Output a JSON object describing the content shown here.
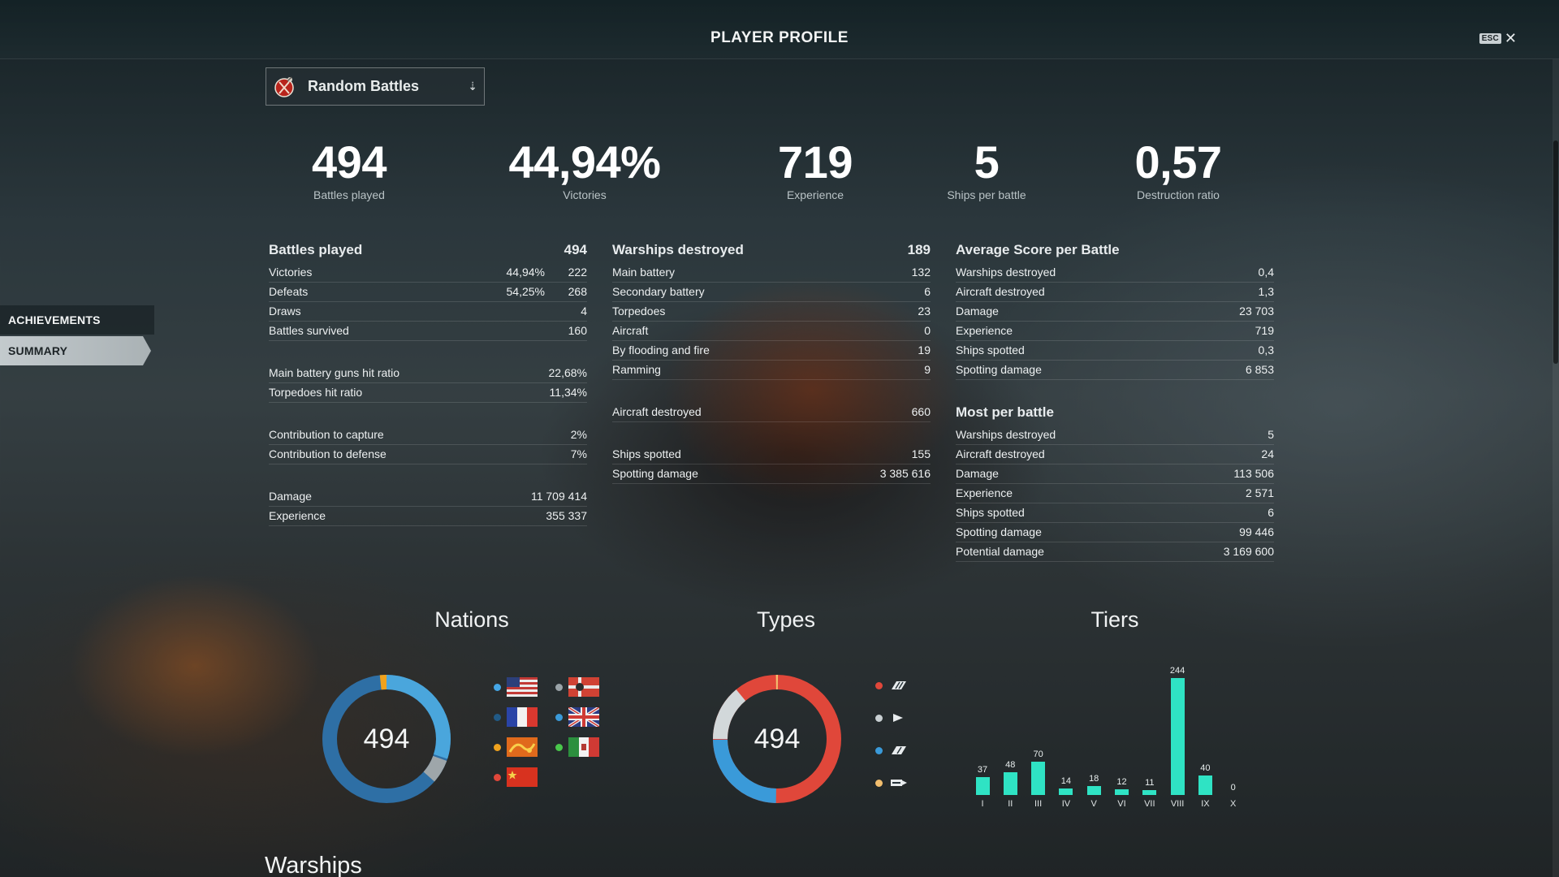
{
  "header": {
    "title": "PLAYER PROFILE",
    "esc_label": "ESC",
    "close_glyph": "✕"
  },
  "sidenav": {
    "items": [
      {
        "label": "ACHIEVEMENTS"
      },
      {
        "label": "SUMMARY",
        "selected": true
      }
    ]
  },
  "mode_select": {
    "label": "Random Battles",
    "icon": "random-battles-icon"
  },
  "headline": [
    {
      "value": "494",
      "label": "Battles played"
    },
    {
      "value": "44,94%",
      "label": "Victories"
    },
    {
      "value": "719",
      "label": "Experience"
    },
    {
      "value": "5",
      "label": "Ships per battle"
    },
    {
      "value": "0,57",
      "label": "Destruction ratio"
    }
  ],
  "battles": {
    "title": "Battles played",
    "total": "494",
    "rows": [
      {
        "label": "Victories",
        "pct": "44,94%",
        "value": "222"
      },
      {
        "label": "Defeats",
        "pct": "54,25%",
        "value": "268"
      },
      {
        "label": "Draws",
        "value": "4"
      },
      {
        "label": "Battles survived",
        "value": "160"
      }
    ],
    "hit_rows": [
      {
        "label": "Main battery guns hit ratio",
        "value": "22,68%"
      },
      {
        "label": "Torpedoes hit ratio",
        "value": "11,34%"
      }
    ],
    "contrib_rows": [
      {
        "label": "Contribution to capture",
        "value": "2%"
      },
      {
        "label": "Contribution to defense",
        "value": "7%"
      }
    ],
    "total_rows": [
      {
        "label": "Damage",
        "value": "11 709 414"
      },
      {
        "label": "Experience",
        "value": "355 337"
      }
    ]
  },
  "warships": {
    "title": "Warships destroyed",
    "total": "189",
    "rows": [
      {
        "label": "Main battery",
        "value": "132"
      },
      {
        "label": "Secondary battery",
        "value": "6"
      },
      {
        "label": "Torpedoes",
        "value": "23"
      },
      {
        "label": "Aircraft",
        "value": "0"
      },
      {
        "label": "By flooding and fire",
        "value": "19"
      },
      {
        "label": "Ramming",
        "value": "9"
      }
    ],
    "aircraft_row": {
      "label": "Aircraft destroyed",
      "value": "660"
    },
    "spot_rows": [
      {
        "label": "Ships spotted",
        "value": "155"
      },
      {
        "label": "Spotting damage",
        "value": "3 385 616"
      }
    ]
  },
  "average": {
    "title": "Average Score per Battle",
    "rows": [
      {
        "label": "Warships destroyed",
        "value": "0,4"
      },
      {
        "label": "Aircraft destroyed",
        "value": "1,3"
      },
      {
        "label": "Damage",
        "value": "23 703"
      },
      {
        "label": "Experience",
        "value": "719"
      },
      {
        "label": "Ships spotted",
        "value": "0,3"
      },
      {
        "label": "Spotting damage",
        "value": "6 853"
      }
    ]
  },
  "most": {
    "title": "Most per battle",
    "rows": [
      {
        "label": "Warships destroyed",
        "value": "5"
      },
      {
        "label": "Aircraft destroyed",
        "value": "24"
      },
      {
        "label": "Damage",
        "value": "113 506"
      },
      {
        "label": "Experience",
        "value": "2 571"
      },
      {
        "label": "Ships spotted",
        "value": "6"
      },
      {
        "label": "Spotting damage",
        "value": "99 446"
      },
      {
        "label": "Potential damage",
        "value": "3 169 600"
      }
    ]
  },
  "charts_section": {
    "nations_title": "Nations",
    "types_title": "Types",
    "tiers_title": "Tiers",
    "nations_total": "494",
    "types_total": "494",
    "nation_legend": [
      {
        "icon": "usa-flag-icon",
        "dot": "#45a6e6"
      },
      {
        "icon": "germany-flag-icon",
        "dot": "#9aa3a8"
      },
      {
        "icon": "france-flag-icon",
        "dot": "#215a86"
      },
      {
        "icon": "uk-flag-icon",
        "dot": "#3a9ad9"
      },
      {
        "icon": "pan-asia-flag-icon",
        "dot": "#f0a21e"
      },
      {
        "icon": "italy-flag-icon",
        "dot": "#49c74b"
      },
      {
        "icon": "china-flag-icon",
        "dot": "#e0473a"
      }
    ],
    "type_legend": [
      {
        "icon": "battleship-icon",
        "dot": "#e0473a"
      },
      {
        "icon": "destroyer-icon",
        "dot": "#c9d0d3"
      },
      {
        "icon": "cruiser-icon",
        "dot": "#3a9ad9"
      },
      {
        "icon": "aircraft-carrier-icon",
        "dot": "#f2be6e"
      }
    ],
    "bar_color": "#2fe3c4",
    "nations_colors": [
      "#f0a21e",
      "#4aa6dc",
      "#9ea6aa",
      "#2e6fa5"
    ],
    "types_colors": [
      "#e0473a",
      "#d2d8da",
      "#3a9ad9",
      "#f2be6e"
    ]
  },
  "chart_data": {
    "type": "bar",
    "title": "Tiers",
    "categories": [
      "I",
      "II",
      "III",
      "IV",
      "V",
      "VI",
      "VII",
      "VIII",
      "IX",
      "X"
    ],
    "values": [
      37,
      48,
      70,
      14,
      18,
      12,
      11,
      244,
      40,
      0
    ],
    "ylim": [
      0,
      244
    ]
  },
  "warships_section": {
    "title": "Warships"
  }
}
